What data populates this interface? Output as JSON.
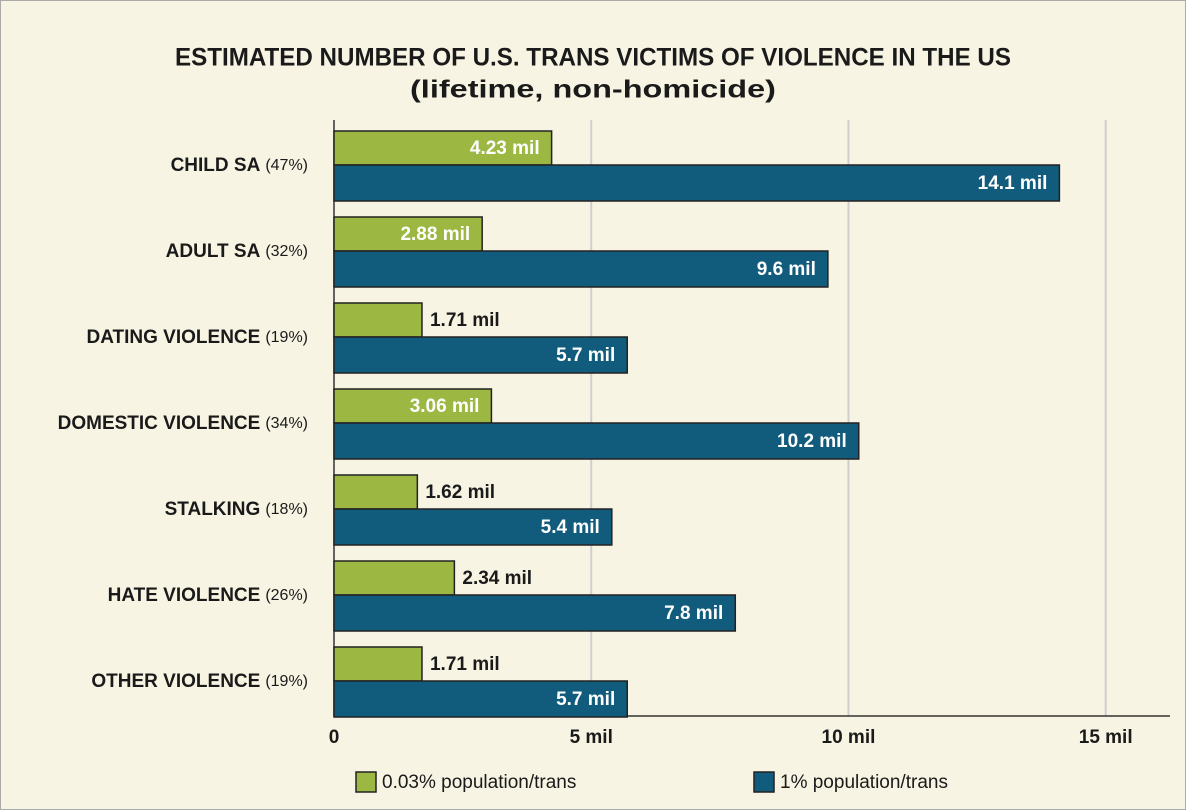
{
  "chart_data": {
    "type": "hbar",
    "title": "ESTIMATED NUMBER OF U.S. TRANS VICTIMS OF VIOLENCE IN THE US",
    "subtitle": "(lifetime, non-homicide)",
    "categories": [
      "CHILD SA",
      "ADULT SA",
      "DATING VIOLENCE",
      "DOMESTIC VIOLENCE",
      "STALKING",
      "HATE VIOLENCE",
      "OTHER VIOLENCE"
    ],
    "category_percents": [
      "(47%)",
      "(32%)",
      "(19%)",
      "(34%)",
      "(18%)",
      "(26%)",
      "(19%)"
    ],
    "series": [
      {
        "name": "0.03% population/trans",
        "color": "#9cb843",
        "values": [
          4.23,
          2.88,
          1.71,
          3.06,
          1.62,
          2.34,
          1.71
        ],
        "value_labels": [
          "4.23 mil",
          "2.88 mil",
          "1.71 mil",
          "3.06 mil",
          "1.62 mil",
          "2.34 mil",
          "1.71 mil"
        ]
      },
      {
        "name": "1% population/trans",
        "color": "#115b7c",
        "values": [
          14.1,
          9.6,
          5.7,
          10.2,
          5.4,
          7.8,
          5.7
        ],
        "value_labels": [
          "14.1 mil",
          "9.6 mil",
          "5.7 mil",
          "10.2 mil",
          "5.4 mil",
          "7.8 mil",
          "5.7 mil"
        ]
      }
    ],
    "xlim": [
      0,
      16.25
    ],
    "xticks": [
      0,
      {
        "value": 5,
        "label": "5 mil"
      },
      {
        "value": 10,
        "label": "10 mil"
      },
      {
        "value": 15,
        "label": "15 mil"
      }
    ],
    "grid": true,
    "legend": "bottom"
  }
}
